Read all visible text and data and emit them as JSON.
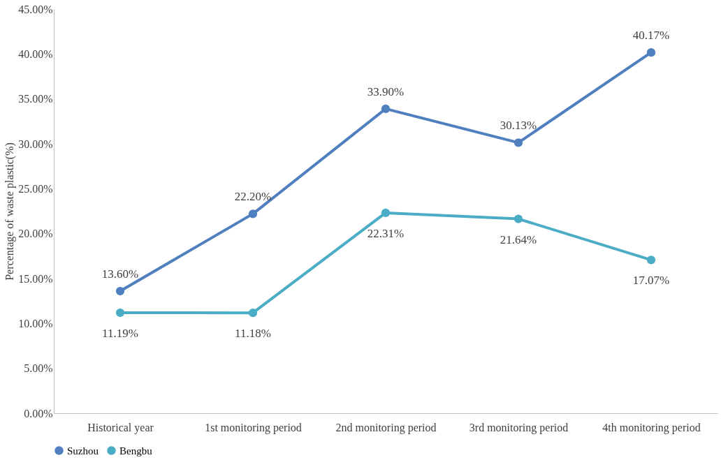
{
  "chart_data": {
    "type": "line",
    "ylabel": "Percentage of waste plastic(%)",
    "categories": [
      "Historical year",
      "1st monitoring period",
      "2nd monitoring period",
      "3rd monitoring period",
      "4th monitoring period"
    ],
    "series": [
      {
        "name": "Suzhou",
        "color": "#4f7fbe",
        "values": [
          13.6,
          22.2,
          33.9,
          30.13,
          40.17
        ],
        "value_labels": [
          "13.60%",
          "22.20%",
          "33.90%",
          "30.13%",
          "40.17%"
        ]
      },
      {
        "name": "Bengbu",
        "color": "#4bacc6",
        "values": [
          11.19,
          11.18,
          22.31,
          21.64,
          17.07
        ],
        "value_labels": [
          "11.19%",
          "11.18%",
          "22.31%",
          "21.64%",
          "17.07%"
        ]
      }
    ],
    "ylim": [
      0,
      45
    ],
    "yticks": [
      {
        "value": 0,
        "label": "0.00%"
      },
      {
        "value": 5,
        "label": "5.00%"
      },
      {
        "value": 10,
        "label": "10.00%"
      },
      {
        "value": 15,
        "label": "15.00%"
      },
      {
        "value": 20,
        "label": "20.00%"
      },
      {
        "value": 25,
        "label": "25.00%"
      },
      {
        "value": 30,
        "label": "30.00%"
      },
      {
        "value": 35,
        "label": "35.00%"
      },
      {
        "value": 40,
        "label": "40.00%"
      },
      {
        "value": 45,
        "label": "45.00%"
      }
    ],
    "grid": false,
    "legend": "bottom",
    "marker": "circle",
    "line_style": "solid"
  }
}
